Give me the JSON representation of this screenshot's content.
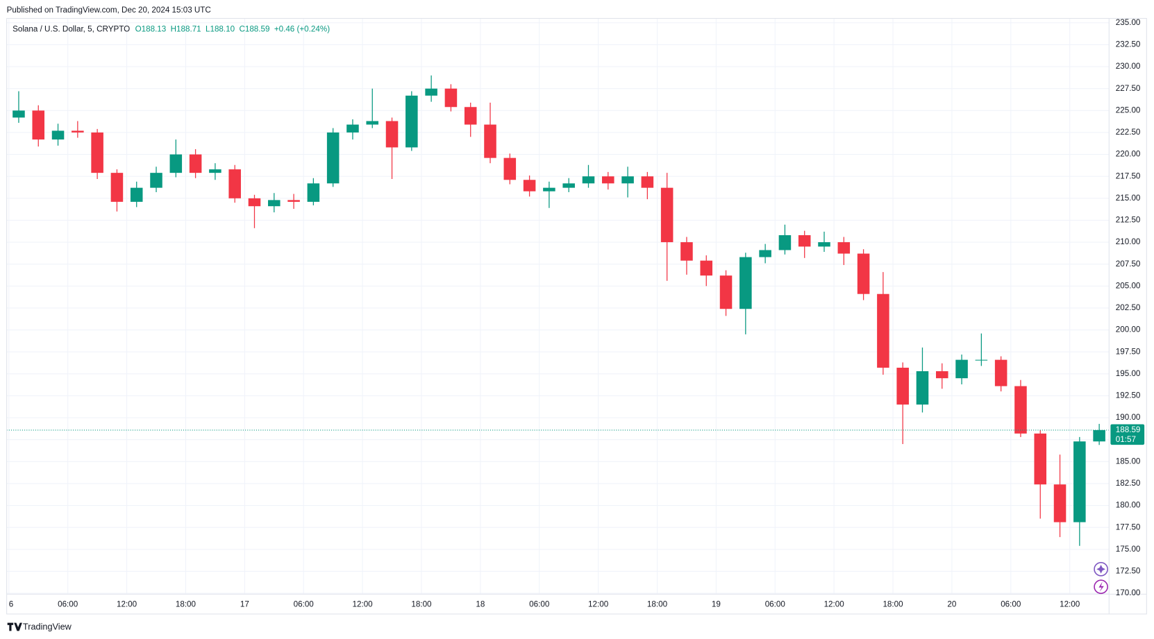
{
  "header": {
    "published": "Published on TradingView.com, Dec 20, 2024 15:03 UTC"
  },
  "chart_data": {
    "type": "candlestick",
    "title": "Solana / U.S. Dollar, 5, CRYPTO",
    "legend_values": [
      "O188.13",
      "H188.71",
      "L188.10",
      "C188.59",
      "+0.46 (+0.24%)"
    ],
    "countdown": "01:57",
    "x": [
      "2024-12-16 00:00",
      "2024-12-16 02:00",
      "2024-12-16 04:00",
      "2024-12-16 06:00",
      "2024-12-16 08:00",
      "2024-12-16 10:00",
      "2024-12-16 12:00",
      "2024-12-16 14:00",
      "2024-12-16 16:00",
      "2024-12-16 18:00",
      "2024-12-16 20:00",
      "2024-12-16 22:00",
      "2024-12-17 00:00",
      "2024-12-17 02:00",
      "2024-12-17 04:00",
      "2024-12-17 06:00",
      "2024-12-17 08:00",
      "2024-12-17 10:00",
      "2024-12-17 12:00",
      "2024-12-17 14:00",
      "2024-12-17 16:00",
      "2024-12-17 18:00",
      "2024-12-17 20:00",
      "2024-12-17 22:00",
      "2024-12-18 00:00",
      "2024-12-18 02:00",
      "2024-12-18 04:00",
      "2024-12-18 06:00",
      "2024-12-18 08:00",
      "2024-12-18 10:00",
      "2024-12-18 12:00",
      "2024-12-18 14:00",
      "2024-12-18 16:00",
      "2024-12-18 18:00",
      "2024-12-18 20:00",
      "2024-12-18 22:00",
      "2024-12-19 00:00",
      "2024-12-19 02:00",
      "2024-12-19 04:00",
      "2024-12-19 06:00",
      "2024-12-19 08:00",
      "2024-12-19 10:00",
      "2024-12-19 12:00",
      "2024-12-19 14:00",
      "2024-12-19 16:00",
      "2024-12-19 18:00",
      "2024-12-19 20:00",
      "2024-12-19 22:00",
      "2024-12-20 00:00",
      "2024-12-20 02:00",
      "2024-12-20 04:00",
      "2024-12-20 06:00",
      "2024-12-20 08:00",
      "2024-12-20 10:00",
      "2024-12-20 12:00",
      "2024-12-20 14:00"
    ],
    "series": [
      {
        "open": [
          224.2,
          225.0,
          221.7,
          222.7,
          222.5,
          217.9,
          214.6,
          216.2,
          217.9,
          220.0,
          217.9,
          218.3,
          215.0,
          214.1,
          214.8,
          214.6,
          216.7,
          222.5,
          223.4,
          223.8,
          220.8,
          226.7,
          227.5,
          225.4,
          223.4,
          219.6,
          217.1,
          215.8,
          216.2,
          216.7,
          217.5,
          216.7,
          217.5,
          216.2,
          210.0,
          207.9,
          206.2,
          202.4,
          208.3,
          209.1,
          210.8,
          209.5,
          210.0,
          208.7,
          204.1,
          195.7,
          191.5,
          195.3,
          194.5,
          196.6,
          196.6,
          193.6,
          188.2,
          182.4,
          178.1,
          187.3
        ],
        "high": [
          227.2,
          225.6,
          223.5,
          223.8,
          222.9,
          218.3,
          216.9,
          218.6,
          221.7,
          220.6,
          219.0,
          218.8,
          215.4,
          215.6,
          215.5,
          217.3,
          223.0,
          224.0,
          227.5,
          224.2,
          227.2,
          229.0,
          228.0,
          225.9,
          225.9,
          220.1,
          217.6,
          216.9,
          217.3,
          218.8,
          218.0,
          218.6,
          218.0,
          217.9,
          210.6,
          208.5,
          206.8,
          208.8,
          209.8,
          212.0,
          211.3,
          211.2,
          210.6,
          209.2,
          206.6,
          196.3,
          198.0,
          196.2,
          197.2,
          199.6,
          197.0,
          194.3,
          188.6,
          185.8,
          187.8,
          189.3
        ],
        "low": [
          223.6,
          220.9,
          221.0,
          221.9,
          217.2,
          213.5,
          214.0,
          215.7,
          217.4,
          217.3,
          217.1,
          214.5,
          211.6,
          213.4,
          213.8,
          214.2,
          216.3,
          221.7,
          223.0,
          217.2,
          220.4,
          226.0,
          224.9,
          222.0,
          219.0,
          216.6,
          215.2,
          213.9,
          215.7,
          216.2,
          216.0,
          215.1,
          214.9,
          205.6,
          206.3,
          205.0,
          201.6,
          199.5,
          207.6,
          208.6,
          208.2,
          208.9,
          207.4,
          203.4,
          194.9,
          187.0,
          190.6,
          193.3,
          193.8,
          195.9,
          193.0,
          187.8,
          178.5,
          176.4,
          175.4,
          186.9
        ],
        "close": [
          225.0,
          221.7,
          222.7,
          222.5,
          217.9,
          214.6,
          216.2,
          217.9,
          220.0,
          217.9,
          218.3,
          215.0,
          214.1,
          214.8,
          214.6,
          216.7,
          222.5,
          223.4,
          223.8,
          220.8,
          226.7,
          227.5,
          225.4,
          223.4,
          219.6,
          217.1,
          215.8,
          216.2,
          216.7,
          217.5,
          216.7,
          217.5,
          216.2,
          210.0,
          207.9,
          206.2,
          202.4,
          208.3,
          209.1,
          210.8,
          209.5,
          210.0,
          208.7,
          204.1,
          195.7,
          191.5,
          195.3,
          194.5,
          196.6,
          196.6,
          193.6,
          188.2,
          182.4,
          178.1,
          187.3,
          188.59
        ],
        "up_color": "#089981",
        "down_color": "#f23645"
      }
    ],
    "xlim": [
      "2024-12-16 00:00",
      "2024-12-20 16:00"
    ],
    "xticks": [
      {
        "value": "2024-12-16 00:00",
        "label": "6"
      },
      {
        "value": "2024-12-16 06:00",
        "label": "06:00"
      },
      {
        "value": "2024-12-16 12:00",
        "label": "12:00"
      },
      {
        "value": "2024-12-16 18:00",
        "label": "18:00"
      },
      {
        "value": "2024-12-17 00:00",
        "label": "17"
      },
      {
        "value": "2024-12-17 06:00",
        "label": "06:00"
      },
      {
        "value": "2024-12-17 12:00",
        "label": "12:00"
      },
      {
        "value": "2024-12-17 18:00",
        "label": "18:00"
      },
      {
        "value": "2024-12-18 00:00",
        "label": "18"
      },
      {
        "value": "2024-12-18 06:00",
        "label": "06:00"
      },
      {
        "value": "2024-12-18 12:00",
        "label": "12:00"
      },
      {
        "value": "2024-12-18 18:00",
        "label": "18:00"
      },
      {
        "value": "2024-12-19 00:00",
        "label": "19"
      },
      {
        "value": "2024-12-19 06:00",
        "label": "06:00"
      },
      {
        "value": "2024-12-19 12:00",
        "label": "12:00"
      },
      {
        "value": "2024-12-19 18:00",
        "label": "18:00"
      },
      {
        "value": "2024-12-20 00:00",
        "label": "20"
      },
      {
        "value": "2024-12-20 06:00",
        "label": "06:00"
      },
      {
        "value": "2024-12-20 12:00",
        "label": "12:00"
      }
    ],
    "ylim": [
      169.9,
      235.5
    ],
    "yticks": [
      {
        "value": 170,
        "label": "170.00"
      },
      {
        "value": 172.5,
        "label": "172.50"
      },
      {
        "value": 175,
        "label": "175.00"
      },
      {
        "value": 177.5,
        "label": "177.50"
      },
      {
        "value": 180,
        "label": "180.00"
      },
      {
        "value": 182.5,
        "label": "182.50"
      },
      {
        "value": 185,
        "label": "185.00"
      },
      {
        "value": 187.5,
        "label": "187.50"
      },
      {
        "value": 190,
        "label": "190.00"
      },
      {
        "value": 192.5,
        "label": "192.50"
      },
      {
        "value": 195,
        "label": "195.00"
      },
      {
        "value": 197.5,
        "label": "197.50"
      },
      {
        "value": 200,
        "label": "200.00"
      },
      {
        "value": 202.5,
        "label": "202.50"
      },
      {
        "value": 205,
        "label": "205.00"
      },
      {
        "value": 207.5,
        "label": "207.50"
      },
      {
        "value": 210,
        "label": "210.00"
      },
      {
        "value": 212.5,
        "label": "212.50"
      },
      {
        "value": 215,
        "label": "215.00"
      },
      {
        "value": 217.5,
        "label": "217.50"
      },
      {
        "value": 220,
        "label": "220.00"
      },
      {
        "value": 222.5,
        "label": "222.50"
      },
      {
        "value": 225,
        "label": "225.00"
      },
      {
        "value": 227.5,
        "label": "227.50"
      },
      {
        "value": 230,
        "label": "230.00"
      },
      {
        "value": 232.5,
        "label": "232.50"
      },
      {
        "value": 235,
        "label": "235.00"
      }
    ],
    "grid": true,
    "price_line_color": "#089981"
  },
  "footer": {
    "brand": "TradingView"
  }
}
